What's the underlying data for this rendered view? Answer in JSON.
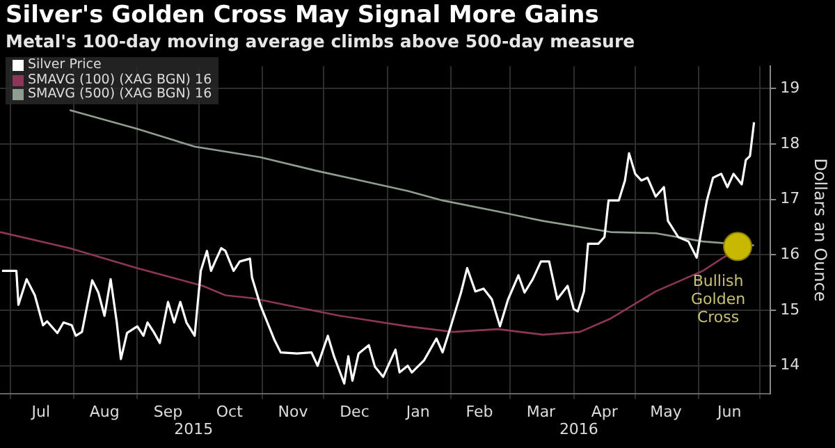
{
  "chart_data": {
    "type": "line",
    "title": "Silver's Golden Cross May Signal More Gains",
    "subtitle": "Metal's 100-day moving average climbs above 500-day measure",
    "ylabel": "Dollars an Ounce",
    "legend": "top left",
    "grid": true,
    "xlim": [
      "2015-06-26",
      "2016-07-06"
    ],
    "ylim": [
      13.5,
      19.4
    ],
    "yticks": [
      14,
      15,
      16,
      17,
      18,
      19
    ],
    "xticks": [
      {
        "value": "2015-07-01",
        "label": null
      },
      {
        "value": "2015-07-16",
        "label": "Jul"
      },
      {
        "value": "2015-08-01",
        "label": null
      },
      {
        "value": "2015-08-16",
        "label": "Aug"
      },
      {
        "value": "2015-09-01",
        "label": null
      },
      {
        "value": "2015-09-16",
        "label": "Sep"
      },
      {
        "value": "2015-10-01",
        "label": null
      },
      {
        "value": "2015-10-16",
        "label": "Oct"
      },
      {
        "value": "2015-11-01",
        "label": null
      },
      {
        "value": "2015-11-16",
        "label": "Nov"
      },
      {
        "value": "2015-12-01",
        "label": null
      },
      {
        "value": "2015-12-16",
        "label": "Dec"
      },
      {
        "value": "2016-01-01",
        "label": null
      },
      {
        "value": "2016-01-16",
        "label": "Jan"
      },
      {
        "value": "2016-02-01",
        "label": null
      },
      {
        "value": "2016-02-15",
        "label": "Feb"
      },
      {
        "value": "2016-03-01",
        "label": null
      },
      {
        "value": "2016-03-16",
        "label": "Mar"
      },
      {
        "value": "2016-04-01",
        "label": null
      },
      {
        "value": "2016-04-16",
        "label": "Apr"
      },
      {
        "value": "2016-05-01",
        "label": null
      },
      {
        "value": "2016-05-16",
        "label": "May"
      },
      {
        "value": "2016-06-01",
        "label": null
      },
      {
        "value": "2016-06-16",
        "label": "Jun"
      },
      {
        "value": "2016-07-01",
        "label": null
      }
    ],
    "annotations": [
      "2015",
      "2016",
      {
        "text": "Bullish Golden Cross",
        "x": "2016-06-20",
        "y": 16.15
      }
    ],
    "series": [
      {
        "name": "Silver Price",
        "color": "#ffffff",
        "x": [
          "2015-06-27",
          "2015-07-04",
          "2015-07-05",
          "2015-07-09",
          "2015-07-13",
          "2015-07-17",
          "2015-07-19",
          "2015-07-24",
          "2015-07-27",
          "2015-07-31",
          "2015-08-02",
          "2015-08-05",
          "2015-08-10",
          "2015-08-13",
          "2015-08-16",
          "2015-08-19",
          "2015-08-22",
          "2015-08-24",
          "2015-08-27",
          "2015-09-01",
          "2015-09-04",
          "2015-09-06",
          "2015-09-09",
          "2015-09-12",
          "2015-09-16",
          "2015-09-19",
          "2015-09-22",
          "2015-09-25",
          "2015-09-29",
          "2015-10-02",
          "2015-10-05",
          "2015-10-07",
          "2015-10-09",
          "2015-10-12",
          "2015-10-14",
          "2015-10-18",
          "2015-10-21",
          "2015-10-26",
          "2015-10-27",
          "2015-10-31",
          "2015-11-07",
          "2015-11-10",
          "2015-11-18",
          "2015-11-25",
          "2015-11-28",
          "2015-12-03",
          "2015-12-06",
          "2015-12-11",
          "2015-12-13",
          "2015-12-15",
          "2015-12-18",
          "2015-12-23",
          "2015-12-26",
          "2015-12-30",
          "2016-01-05",
          "2016-01-07",
          "2016-01-11",
          "2016-01-13",
          "2016-01-19",
          "2016-01-25",
          "2016-01-28",
          "2016-02-01",
          "2016-02-06",
          "2016-02-09",
          "2016-02-13",
          "2016-02-17",
          "2016-02-21",
          "2016-02-25",
          "2016-02-29",
          "2016-03-05",
          "2016-03-08",
          "2016-03-12",
          "2016-03-16",
          "2016-03-20",
          "2016-03-24",
          "2016-03-29",
          "2016-04-01",
          "2016-04-03",
          "2016-04-06",
          "2016-04-08",
          "2016-04-13",
          "2016-04-16",
          "2016-04-18",
          "2016-04-23",
          "2016-04-26",
          "2016-04-28",
          "2016-05-01",
          "2016-05-04",
          "2016-05-07",
          "2016-05-11",
          "2016-05-15",
          "2016-05-17",
          "2016-05-22",
          "2016-05-27",
          "2016-05-31",
          "2016-06-02",
          "2016-06-05",
          "2016-06-08",
          "2016-06-12",
          "2016-06-15",
          "2016-06-18",
          "2016-06-22",
          "2016-06-24",
          "2016-06-26",
          "2016-06-28"
        ],
        "values": [
          15.71,
          15.71,
          15.1,
          15.56,
          15.27,
          14.73,
          14.8,
          14.59,
          14.78,
          14.73,
          14.54,
          14.61,
          15.54,
          15.32,
          14.9,
          15.56,
          14.78,
          14.12,
          14.59,
          14.71,
          14.54,
          14.78,
          14.61,
          14.41,
          15.15,
          14.78,
          15.15,
          14.78,
          14.54,
          15.71,
          16.07,
          15.71,
          15.88,
          16.12,
          16.07,
          15.71,
          15.88,
          15.93,
          15.59,
          15.1,
          14.46,
          14.24,
          14.22,
          14.24,
          14.0,
          14.54,
          14.17,
          13.68,
          14.17,
          13.73,
          14.22,
          14.37,
          13.98,
          13.8,
          14.29,
          13.88,
          14.0,
          13.88,
          14.1,
          14.49,
          14.24,
          14.71,
          15.32,
          15.76,
          15.34,
          15.39,
          15.2,
          14.71,
          15.2,
          15.63,
          15.32,
          15.56,
          15.88,
          15.88,
          15.2,
          15.44,
          15.02,
          14.98,
          15.34,
          16.2,
          16.2,
          16.32,
          16.98,
          16.98,
          17.34,
          17.83,
          17.46,
          17.34,
          17.39,
          17.05,
          17.22,
          16.61,
          16.32,
          16.24,
          15.95,
          16.37,
          16.98,
          17.39,
          17.46,
          17.22,
          17.46,
          17.27,
          17.71,
          17.78,
          18.39
        ]
      },
      {
        "name": "SMAVG (100) (XAG BGN) 16",
        "color": "#8e3658",
        "x": [
          "2015-06-26",
          "2015-07-30",
          "2015-09-01",
          "2015-10-03",
          "2015-10-14",
          "2015-10-27",
          "2015-11-16",
          "2015-12-09",
          "2016-01-11",
          "2016-02-02",
          "2016-02-24",
          "2016-03-17",
          "2016-04-04",
          "2016-04-19",
          "2016-05-11",
          "2016-06-03",
          "2016-06-13",
          "2016-06-21"
        ],
        "values": [
          16.41,
          16.12,
          15.76,
          15.44,
          15.27,
          15.22,
          15.07,
          14.9,
          14.71,
          14.61,
          14.66,
          14.56,
          14.61,
          14.85,
          15.34,
          15.71,
          15.95,
          16.12
        ]
      },
      {
        "name": "SMAVG (500) (XAG BGN) 16",
        "color": "#8f9e8f",
        "x": [
          "2015-07-30",
          "2015-09-01",
          "2015-09-29",
          "2015-10-31",
          "2015-11-28",
          "2015-12-19",
          "2016-01-11",
          "2016-01-28",
          "2016-02-24",
          "2016-03-17",
          "2016-04-19",
          "2016-05-11",
          "2016-06-03",
          "2016-06-28"
        ],
        "values": [
          18.61,
          18.27,
          17.95,
          17.76,
          17.51,
          17.34,
          17.15,
          16.98,
          16.78,
          16.61,
          16.41,
          16.39,
          16.24,
          16.17
        ]
      }
    ]
  }
}
